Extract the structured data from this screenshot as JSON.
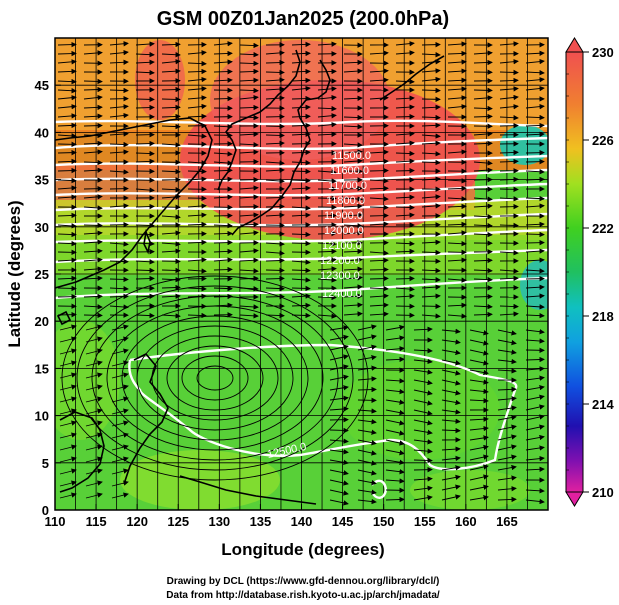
{
  "figure": {
    "title": "GSM 00Z01Jan2025 (200.0hPa)",
    "xlabel": "Longitude (degrees)",
    "ylabel": "Latitude  (degrees)",
    "credit_line1": "Drawing by DCL (https://www.gfd-dennou.org/library/dcl/)",
    "credit_line2": "Data from http://database.rish.kyoto-u.ac.jp/arch/jmadata/"
  },
  "axes": {
    "x_ticks": [
      "110",
      "115",
      "120",
      "125",
      "130",
      "135",
      "140",
      "145",
      "150",
      "155",
      "160",
      "165"
    ],
    "y_ticks": [
      "0",
      "5",
      "10",
      "15",
      "20",
      "25",
      "30",
      "35",
      "40",
      "45"
    ],
    "xlim": [
      110,
      170
    ],
    "ylim": [
      0,
      50
    ]
  },
  "colorbar": {
    "labels": [
      "230",
      "226",
      "222",
      "218",
      "214",
      "210"
    ],
    "range": [
      210,
      230
    ],
    "colors": [
      "#e0209a",
      "#2010b0",
      "#1060e0",
      "#10b8e0",
      "#20c060",
      "#40d020",
      "#a0e020",
      "#f0c020",
      "#f08020",
      "#f04040"
    ]
  },
  "contours": {
    "labels": [
      "11500.0",
      "11600.0",
      "11700.0",
      "11800.0",
      "11900.0",
      "12000.0",
      "12100.0",
      "12200.0",
      "12300.0",
      "12400.0",
      "12500.0"
    ]
  },
  "chart_data": {
    "type": "heatmap",
    "title": "GSM 00Z01Jan2025 (200.0hPa)",
    "xlabel": "Longitude (degrees)",
    "ylabel": "Latitude  (degrees)",
    "xlim": [
      110,
      170
    ],
    "ylim": [
      0,
      50
    ],
    "colorbar_range": [
      210,
      230
    ],
    "contour_values": [
      11500,
      11600,
      11700,
      11800,
      11900,
      12000,
      12100,
      12200,
      12300,
      12400,
      12500
    ]
  }
}
